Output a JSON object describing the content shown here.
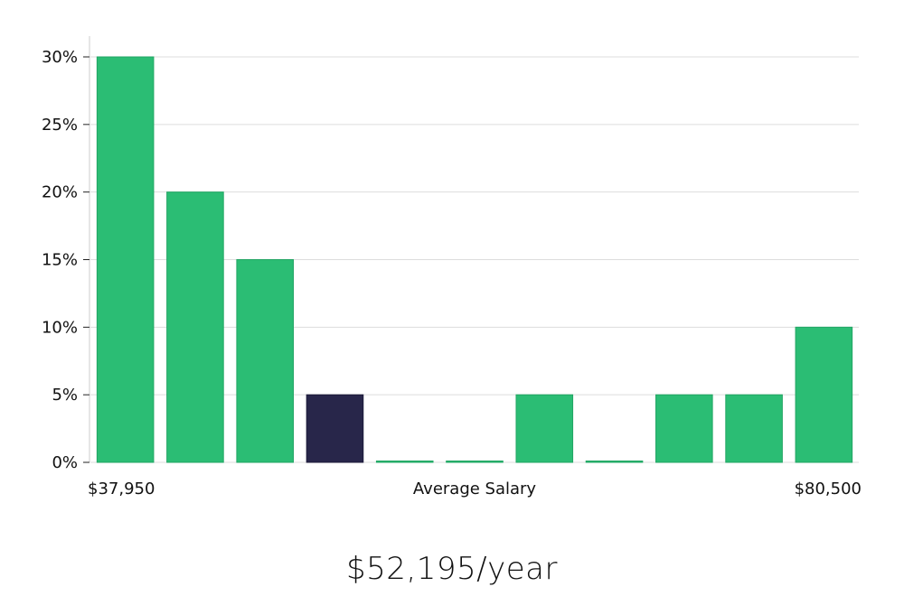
{
  "chart_data": {
    "type": "bar",
    "xlabel": "Average Salary",
    "x_min_label": "$37,950",
    "x_max_label": "$80,500",
    "ylim": [
      0,
      30
    ],
    "yticks": [
      0,
      5,
      10,
      15,
      20,
      25,
      30
    ],
    "ytick_labels": [
      "0%",
      "5%",
      "10%",
      "15%",
      "20%",
      "25%",
      "30%"
    ],
    "values": [
      30,
      20,
      15,
      5,
      0,
      0,
      5,
      0,
      5,
      5,
      10
    ],
    "highlight_index": 3,
    "grid": true,
    "colors": {
      "bar": "#2bbd74",
      "bar_edge": "#22a563",
      "highlight": "#28264a",
      "grid": "#dddddd",
      "axis": "#cccccc"
    }
  },
  "summary": {
    "salary_text": "$52,195/year"
  }
}
